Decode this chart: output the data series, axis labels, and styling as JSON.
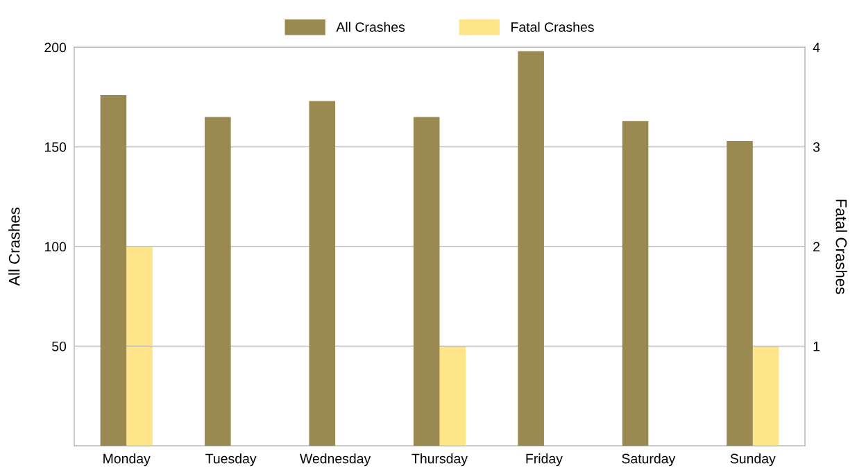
{
  "chart_data": {
    "type": "bar",
    "categories": [
      "Monday",
      "Tuesday",
      "Wednesday",
      "Thursday",
      "Friday",
      "Saturday",
      "Sunday"
    ],
    "series": [
      {
        "name": "All Crashes",
        "color": "#9a8a52",
        "values": [
          176,
          165,
          173,
          165,
          198,
          163,
          153
        ]
      },
      {
        "name": "Fatal Crashes",
        "color": "#fee58a",
        "values": [
          2,
          0,
          0,
          1,
          0,
          0,
          1
        ],
        "axis": "y2"
      }
    ],
    "ylabel": "All Crashes",
    "y2label": "Fatal Crashes",
    "ylim": [
      0,
      200
    ],
    "yticks": [
      50,
      100,
      150,
      200
    ],
    "y2lim": [
      0,
      4
    ],
    "y2ticks": [
      1,
      2,
      3,
      4
    ],
    "grid": "y",
    "legend": "top"
  }
}
